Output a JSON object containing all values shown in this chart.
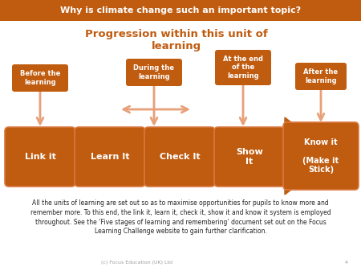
{
  "title_banner": "Why is climate change such an important topic?",
  "title_banner_bg": "#c05c10",
  "title_banner_fg": "#ffffff",
  "subtitle": "Progression within this unit of\nlearning",
  "subtitle_color": "#c05c10",
  "arrow_color": "#c05c10",
  "arrow_light": "#e8a078",
  "box_labels": [
    "Link it",
    "Learn It",
    "Check It",
    "Show\nIt",
    "Know it\n\n(Make it\nStick)"
  ],
  "footer_text": "All the units of learning are set out so as to maximise opportunities for pupils to know more and\nremember more. To this end, the link it, learn it, check it, show it and know it system is employed\nthroughout. See the ‘Five stages of learning and remembering’ document set out on the Focus\nLearning Challenge website to gain further clarification.",
  "copyright_text": "(c) Focus Education (UK) Ltd",
  "page_number": "4",
  "bg_color": "#ffffff"
}
